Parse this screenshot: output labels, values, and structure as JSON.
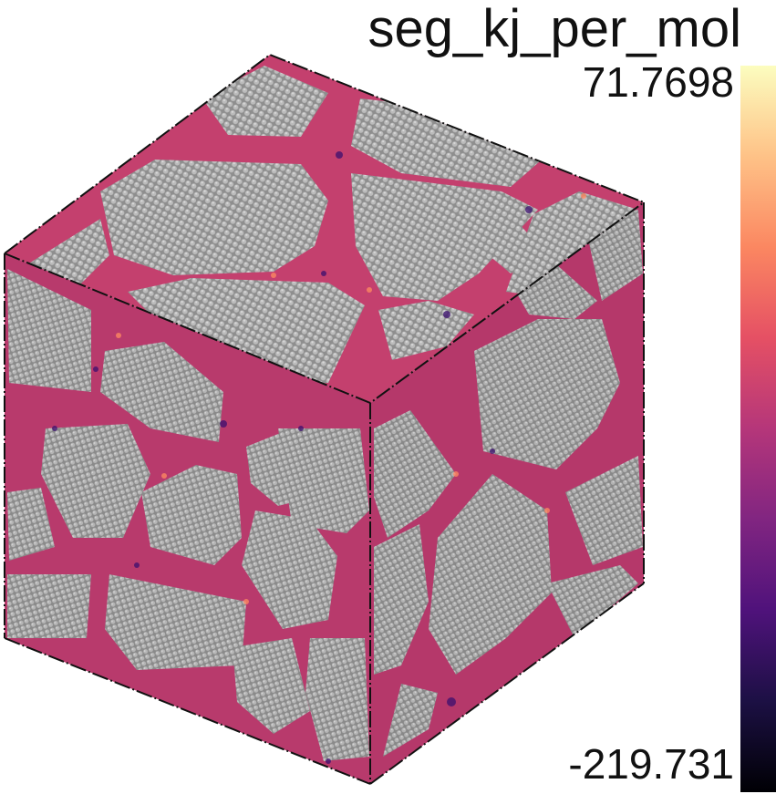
{
  "colorbar": {
    "title": "seg_kj_per_mol",
    "max_label": "71.7698",
    "min_label": "-219.731",
    "colormap": "magma",
    "colors": [
      "#000004",
      "#1c1044",
      "#4f127b",
      "#812581",
      "#b5367a",
      "#e55064",
      "#fb8761",
      "#fec287",
      "#fcfdbf"
    ]
  },
  "render": {
    "grain_color": "#9a9a9a",
    "atom_highlight": "#c2c2c2",
    "edge_color": "#111111"
  }
}
